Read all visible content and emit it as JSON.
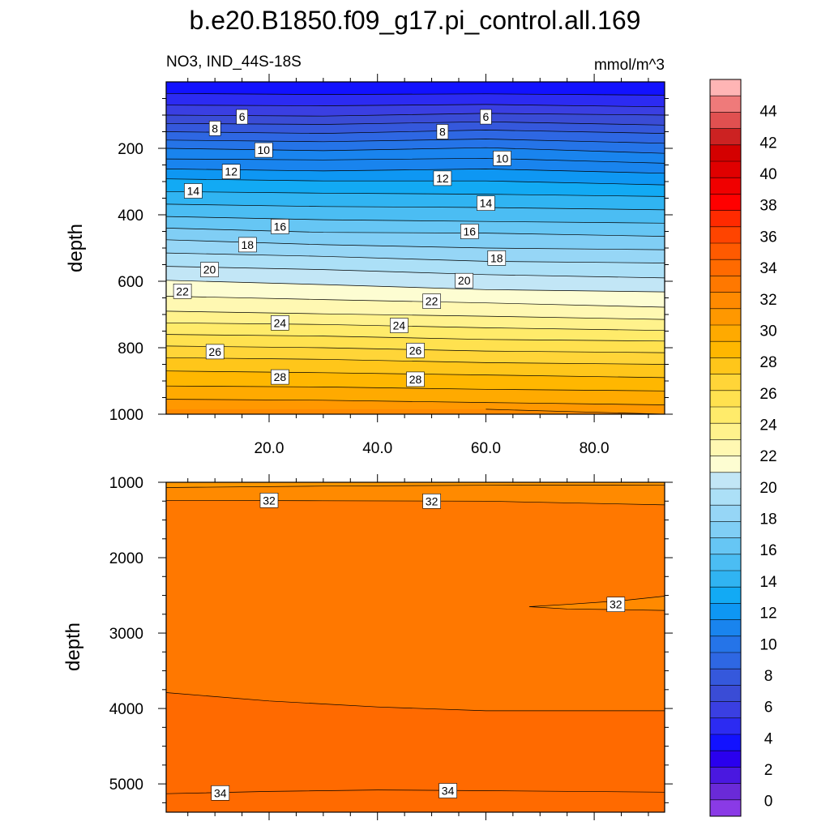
{
  "figure": {
    "title": "b.e20.B1850.f09_g17.pi_control.all.169",
    "subtitle_left": "NO3, IND_44S-18S",
    "subtitle_right": "mmol/m^3"
  },
  "chart_data": [
    {
      "type": "contour",
      "panel": "upper",
      "title": "b.e20.B1850.f09_g17.pi_control.all.169",
      "subtitle": "NO3, IND_44S-18S",
      "units": "mmol/m^3",
      "xlabel": "",
      "ylabel": "depth",
      "xlim": [
        1,
        93
      ],
      "ylim": [
        0,
        1000
      ],
      "y_inverted": true,
      "x_ticks": [
        "20.0",
        "40.0",
        "60.0",
        "80.0"
      ],
      "x_tick_values": [
        20,
        40,
        60,
        80
      ],
      "y_ticks": [
        "200",
        "400",
        "600",
        "800",
        "1000"
      ],
      "y_tick_values": [
        200,
        400,
        600,
        800,
        1000
      ],
      "contour_interval": 1,
      "contours": [
        {
          "level": 4,
          "points": [
            [
              1,
              35
            ],
            [
              30,
              38
            ],
            [
              60,
              36
            ],
            [
              93,
              40
            ]
          ]
        },
        {
          "level": 5,
          "points": [
            [
              1,
              70
            ],
            [
              30,
              72
            ],
            [
              60,
              68
            ],
            [
              93,
              75
            ]
          ]
        },
        {
          "level": 6,
          "points": [
            [
              1,
              100
            ],
            [
              30,
              103
            ],
            [
              60,
              95
            ],
            [
              93,
              100
            ]
          ]
        },
        {
          "level": 7,
          "points": [
            [
              1,
              125
            ],
            [
              30,
              128
            ],
            [
              60,
              120
            ],
            [
              93,
              130
            ]
          ]
        },
        {
          "level": 8,
          "points": [
            [
              1,
              150
            ],
            [
              30,
              155
            ],
            [
              60,
              145
            ],
            [
              93,
              155
            ]
          ]
        },
        {
          "level": 9,
          "points": [
            [
              1,
              175
            ],
            [
              30,
              180
            ],
            [
              60,
              172
            ],
            [
              93,
              185
            ]
          ]
        },
        {
          "level": 10,
          "points": [
            [
              1,
              200
            ],
            [
              30,
              207
            ],
            [
              60,
              198
            ],
            [
              93,
              215
            ]
          ]
        },
        {
          "level": 11,
          "points": [
            [
              1,
              232
            ],
            [
              30,
              235
            ],
            [
              60,
              230
            ],
            [
              93,
              245
            ]
          ]
        },
        {
          "level": 12,
          "points": [
            [
              1,
              262
            ],
            [
              30,
              268
            ],
            [
              60,
              262
            ],
            [
              93,
              275
            ]
          ]
        },
        {
          "level": 13,
          "points": [
            [
              1,
              292
            ],
            [
              30,
              298
            ],
            [
              60,
              298
            ],
            [
              93,
              310
            ]
          ]
        },
        {
          "level": 14,
          "points": [
            [
              1,
              330
            ],
            [
              30,
              335
            ],
            [
              60,
              338
            ],
            [
              93,
              345
            ]
          ]
        },
        {
          "level": 15,
          "points": [
            [
              1,
              368
            ],
            [
              30,
              375
            ],
            [
              60,
              378
            ],
            [
              93,
              385
            ]
          ]
        },
        {
          "level": 16,
          "points": [
            [
              1,
              405
            ],
            [
              30,
              415
            ],
            [
              60,
              420
            ],
            [
              93,
              425
            ]
          ]
        },
        {
          "level": 17,
          "points": [
            [
              1,
              440
            ],
            [
              30,
              453
            ],
            [
              60,
              455
            ],
            [
              93,
              465
            ]
          ]
        },
        {
          "level": 18,
          "points": [
            [
              1,
              475
            ],
            [
              30,
              490
            ],
            [
              60,
              500
            ],
            [
              93,
              505
            ]
          ]
        },
        {
          "level": 19,
          "points": [
            [
              1,
              515
            ],
            [
              30,
              525
            ],
            [
              60,
              540
            ],
            [
              93,
              545
            ]
          ]
        },
        {
          "level": 20,
          "points": [
            [
              1,
              555
            ],
            [
              30,
              565
            ],
            [
              60,
              580
            ],
            [
              93,
              590
            ]
          ]
        },
        {
          "level": 21,
          "points": [
            [
              1,
              597
            ],
            [
              30,
              610
            ],
            [
              60,
              625
            ],
            [
              93,
              632
            ]
          ]
        },
        {
          "level": 22,
          "points": [
            [
              1,
              645
            ],
            [
              30,
              655
            ],
            [
              60,
              665
            ],
            [
              93,
              678
            ]
          ]
        },
        {
          "level": 23,
          "points": [
            [
              1,
              690
            ],
            [
              30,
              698
            ],
            [
              60,
              705
            ],
            [
              93,
              715
            ]
          ]
        },
        {
          "level": 24,
          "points": [
            [
              1,
              725
            ],
            [
              30,
              730
            ],
            [
              60,
              740
            ],
            [
              93,
              748
            ]
          ]
        },
        {
          "level": 25,
          "points": [
            [
              1,
              760
            ],
            [
              30,
              765
            ],
            [
              60,
              775
            ],
            [
              93,
              780
            ]
          ]
        },
        {
          "level": 26,
          "points": [
            [
              1,
              795
            ],
            [
              30,
              800
            ],
            [
              60,
              810
            ],
            [
              93,
              815
            ]
          ]
        },
        {
          "level": 27,
          "points": [
            [
              1,
              830
            ],
            [
              30,
              835
            ],
            [
              60,
              845
            ],
            [
              93,
              850
            ]
          ]
        },
        {
          "level": 28,
          "points": [
            [
              1,
              870
            ],
            [
              30,
              875
            ],
            [
              60,
              882
            ],
            [
              93,
              890
            ]
          ]
        },
        {
          "level": 29,
          "points": [
            [
              1,
              915
            ],
            [
              30,
              918
            ],
            [
              60,
              925
            ],
            [
              93,
              930
            ]
          ]
        },
        {
          "level": 30,
          "points": [
            [
              1,
              955
            ],
            [
              30,
              958
            ],
            [
              60,
              965
            ],
            [
              93,
              972
            ]
          ]
        },
        {
          "level": 31,
          "points": [
            [
              60,
              985
            ],
            [
              75,
              992
            ],
            [
              93,
              1000
            ]
          ]
        }
      ],
      "contour_labels": [
        {
          "text": "6",
          "x": 15,
          "y": 105
        },
        {
          "text": "6",
          "x": 60,
          "y": 105
        },
        {
          "text": "8",
          "x": 10,
          "y": 140
        },
        {
          "text": "8",
          "x": 52,
          "y": 150
        },
        {
          "text": "10",
          "x": 19,
          "y": 205
        },
        {
          "text": "10",
          "x": 63,
          "y": 230
        },
        {
          "text": "12",
          "x": 13,
          "y": 270
        },
        {
          "text": "12",
          "x": 52,
          "y": 290
        },
        {
          "text": "14",
          "x": 6,
          "y": 328
        },
        {
          "text": "14",
          "x": 60,
          "y": 365
        },
        {
          "text": "16",
          "x": 22,
          "y": 435
        },
        {
          "text": "16",
          "x": 57,
          "y": 450
        },
        {
          "text": "18",
          "x": 16,
          "y": 490
        },
        {
          "text": "18",
          "x": 62,
          "y": 530
        },
        {
          "text": "20",
          "x": 9,
          "y": 565
        },
        {
          "text": "20",
          "x": 56,
          "y": 598
        },
        {
          "text": "22",
          "x": 4,
          "y": 630
        },
        {
          "text": "22",
          "x": 50,
          "y": 660
        },
        {
          "text": "24",
          "x": 22,
          "y": 725
        },
        {
          "text": "24",
          "x": 44,
          "y": 733
        },
        {
          "text": "26",
          "x": 10,
          "y": 812
        },
        {
          "text": "26",
          "x": 47,
          "y": 808
        },
        {
          "text": "28",
          "x": 22,
          "y": 888
        },
        {
          "text": "28",
          "x": 47,
          "y": 895
        }
      ]
    },
    {
      "type": "contour",
      "panel": "lower",
      "xlabel": "",
      "ylabel": "depth",
      "xlim": [
        1,
        93
      ],
      "ylim": [
        1000,
        5375
      ],
      "y_inverted": true,
      "x_ticks": [],
      "y_ticks": [
        "1000",
        "2000",
        "3000",
        "4000",
        "5000"
      ],
      "y_tick_values": [
        1000,
        2000,
        3000,
        4000,
        5000
      ],
      "contour_interval": 1,
      "contours": [
        {
          "level": 31,
          "points": [
            [
              1,
              1070
            ],
            [
              30,
              1050
            ],
            [
              60,
              1040
            ],
            [
              93,
              1035
            ]
          ]
        },
        {
          "level": 32,
          "points": [
            [
              1,
              1240
            ],
            [
              30,
              1245
            ],
            [
              60,
              1250
            ],
            [
              93,
              1300
            ]
          ]
        },
        {
          "level": 32,
          "points": [
            [
              68,
              2650
            ],
            [
              75,
              2620
            ],
            [
              85,
              2570
            ],
            [
              93,
              2510
            ],
            [
              93,
              2700
            ],
            [
              85,
              2690
            ],
            [
              75,
              2680
            ],
            [
              68,
              2650
            ]
          ]
        },
        {
          "level": 33,
          "points": [
            [
              1,
              3790
            ],
            [
              20,
              3900
            ],
            [
              40,
              3980
            ],
            [
              60,
              4030
            ],
            [
              93,
              4030
            ]
          ]
        },
        {
          "level": 34,
          "points": [
            [
              1,
              5130
            ],
            [
              20,
              5100
            ],
            [
              40,
              5080
            ],
            [
              60,
              5090
            ],
            [
              93,
              5110
            ]
          ]
        }
      ],
      "contour_labels": [
        {
          "text": "32",
          "x": 20,
          "y": 1240
        },
        {
          "text": "32",
          "x": 50,
          "y": 1250
        },
        {
          "text": "32",
          "x": 84,
          "y": 2620
        },
        {
          "text": "34",
          "x": 11,
          "y": 5120
        },
        {
          "text": "34",
          "x": 53,
          "y": 5090
        }
      ]
    },
    {
      "type": "colorbar",
      "levels": [
        "44",
        "42",
        "40",
        "38",
        "36",
        "34",
        "32",
        "30",
        "28",
        "26",
        "24",
        "22",
        "20",
        "18",
        "16",
        "14",
        "12",
        "10",
        "8",
        "6",
        "4",
        "2",
        "0"
      ],
      "colors": [
        "#ffb5b5",
        "#ef7a7a",
        "#e05050",
        "#cc2222",
        "#d40000",
        "#e00000",
        "#f00000",
        "#ff0000",
        "#ff2a00",
        "#ff4400",
        "#ff5a00",
        "#ff6a00",
        "#ff7800",
        "#ff8a00",
        "#ff9800",
        "#ffaa00",
        "#ffb700",
        "#ffc61a",
        "#ffd538",
        "#ffe14f",
        "#ffeb6a",
        "#fff28c",
        "#fff8b2",
        "#fdfdd2",
        "#c2e6f6",
        "#ace0f7",
        "#96d6f6",
        "#80cef5",
        "#66c6f4",
        "#4bbdf3",
        "#30b4f2",
        "#12aaf4",
        "#0e97f3",
        "#1984ee",
        "#2574e8",
        "#2e67e3",
        "#3558dc",
        "#3a4cd6",
        "#3a3fe2",
        "#2c2bf2",
        "#1212ff",
        "#2a00ee",
        "#4a18e0",
        "#6a2ad8",
        "#8a3ae6"
      ],
      "value_min": -1,
      "value_max": 46
    }
  ]
}
